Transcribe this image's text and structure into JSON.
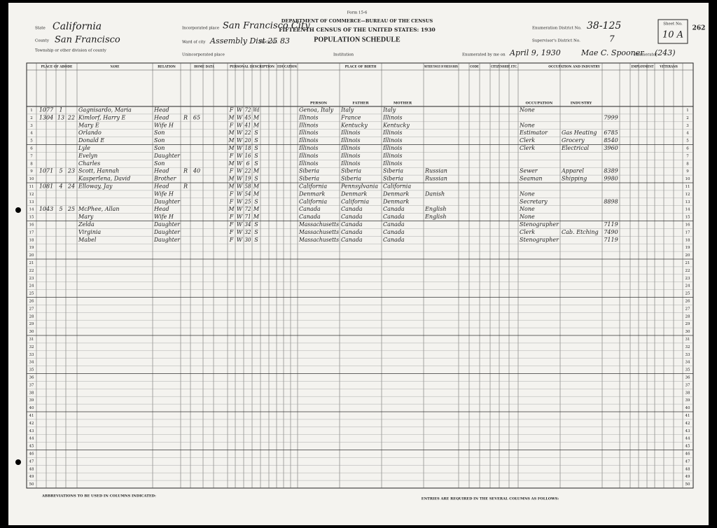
{
  "header": {
    "form": "Form 15-6",
    "department": "DEPARTMENT OF COMMERCE—BUREAU OF THE CENSUS",
    "census": "FIFTEENTH CENSUS OF THE UNITED STATES: 1930",
    "schedule": "POPULATION SCHEDULE",
    "state_label": "State",
    "state": "California",
    "county_label": "County",
    "county": "San Francisco",
    "township_label": "Township or other division of county",
    "place_label": "Incorporated place",
    "place": "San Francisco City",
    "ward_label": "Ward of city",
    "ward": "Assembly Dist 25",
    "block_label": "Block No.",
    "block": "83",
    "unincorporated_label": "Unincorporated place",
    "institution_label": "Institution",
    "district_label": "Enumeration District No.",
    "district": "38-125",
    "supervisor_label": "Supervisor's District No.",
    "supervisor": "7",
    "sheet_label": "Sheet No.",
    "sheet": "10 A",
    "stamp": "262",
    "enumerated_label": "Enumerated by me on",
    "date": "April 9, 1930",
    "enumerator": "Mae C. Spooner",
    "enumerator_label": "Enumerator",
    "ref": "(243)"
  },
  "column_groups": [
    "PLACE OF ABODE",
    "NAME",
    "RELATION",
    "HOME DATA",
    "PERSONAL DESCRIPTION",
    "EDUCATION",
    "PLACE OF BIRTH",
    "MOTHER TONGUE OF FOREIGN BORN",
    "CODE",
    "CITIZENSHIP, ETC.",
    "OCCUPATION AND INDUSTRY",
    "EMPLOYMENT",
    "VETERANS"
  ],
  "sub_columns": [
    "PERSON",
    "FATHER",
    "MOTHER",
    "OCCUPATION",
    "INDUSTRY"
  ],
  "row_numbers": [
    1,
    2,
    3,
    4,
    5,
    6,
    7,
    8,
    9,
    10,
    11,
    12,
    13,
    14,
    15,
    16,
    17,
    18,
    19,
    20,
    21,
    22,
    23,
    24,
    25,
    26,
    27,
    28,
    29,
    30,
    31,
    32,
    33,
    34,
    35,
    36,
    37,
    38,
    39,
    40,
    41,
    42,
    43,
    44,
    45,
    46,
    47,
    48,
    49,
    50
  ],
  "entries": [
    {
      "house": "1077",
      "dwelling": "1",
      "name": "Gagnisardo, Maria",
      "relation": "Head",
      "sex": "F",
      "race": "W",
      "age": "72",
      "marital": "Wd",
      "birthplace": "Genoa, Italy",
      "father": "Italy",
      "mother": "Italy",
      "occupation": "None"
    },
    {
      "house": "1304",
      "dwelling": "13",
      "family": "22",
      "name": "Kimlorf, Harry E",
      "relation": "Head",
      "home": "R",
      "value": "65",
      "sex": "M",
      "race": "W",
      "age": "45",
      "marital": "M",
      "birthplace": "Illinois",
      "father": "France",
      "mother": "Illinois",
      "code": "7999"
    },
    {
      "name": "Mary E",
      "relation": "Wife H",
      "sex": "F",
      "race": "W",
      "age": "41",
      "marital": "M",
      "birthplace": "Illinois",
      "father": "Kentucky",
      "mother": "Kentucky",
      "occupation": "None"
    },
    {
      "name": "Orlando",
      "relation": "Son",
      "sex": "M",
      "race": "W",
      "age": "22",
      "marital": "S",
      "birthplace": "Illinois",
      "father": "Illinois",
      "mother": "Illinois",
      "occupation": "Estimator",
      "industry": "Gas Heating",
      "code": "6785"
    },
    {
      "name": "Donald E",
      "relation": "Son",
      "sex": "M",
      "race": "W",
      "age": "20",
      "marital": "S",
      "birthplace": "Illinois",
      "father": "Illinois",
      "mother": "Illinois",
      "occupation": "Clerk",
      "industry": "Grocery",
      "code": "8540"
    },
    {
      "name": "Lyle",
      "relation": "Son",
      "sex": "M",
      "race": "W",
      "age": "18",
      "marital": "S",
      "birthplace": "Illinois",
      "father": "Illinois",
      "mother": "Illinois",
      "occupation": "Clerk",
      "industry": "Electrical",
      "code": "3960"
    },
    {
      "name": "Evelyn",
      "relation": "Daughter",
      "sex": "F",
      "race": "W",
      "age": "16",
      "marital": "S",
      "birthplace": "Illinois",
      "father": "Illinois",
      "mother": "Illinois"
    },
    {
      "name": "Charles",
      "relation": "Son",
      "sex": "M",
      "race": "W",
      "age": "6",
      "marital": "S",
      "birthplace": "Illinois",
      "father": "Illinois",
      "mother": "Illinois"
    },
    {
      "house": "1071",
      "dwelling": "5",
      "family": "23",
      "name": "Scott, Hannah",
      "relation": "Head",
      "home": "R",
      "value": "40",
      "sex": "F",
      "race": "W",
      "age": "22",
      "marital": "M",
      "birthplace": "Siberia",
      "father": "Siberia",
      "mother": "Siberia",
      "language": "Russian",
      "occupation": "Sewer",
      "industry": "Apparel",
      "code": "8389"
    },
    {
      "name": "Kasperlena, David",
      "relation": "Brother",
      "sex": "M",
      "race": "W",
      "age": "19",
      "marital": "S",
      "birthplace": "Siberia",
      "father": "Siberia",
      "mother": "Siberia",
      "language": "Russian",
      "occupation": "Seaman",
      "industry": "Shipping",
      "code": "9980"
    },
    {
      "house": "1081",
      "dwelling": "4",
      "family": "24",
      "name": "Elloway, Jay",
      "relation": "Head",
      "home": "R",
      "sex": "M",
      "race": "W",
      "age": "58",
      "marital": "M",
      "birthplace": "California",
      "father": "Pennsylvania",
      "mother": "California"
    },
    {
      "relation": "Wife H",
      "sex": "F",
      "race": "W",
      "age": "54",
      "marital": "M",
      "birthplace": "Denmark",
      "father": "Denmark",
      "mother": "Denmark",
      "language": "Danish",
      "occupation": "None"
    },
    {
      "relation": "Daughter",
      "sex": "F",
      "race": "W",
      "age": "25",
      "marital": "S",
      "birthplace": "California",
      "father": "California",
      "mother": "Denmark",
      "occupation": "Secretary",
      "code": "8898"
    },
    {
      "house": "1043",
      "dwelling": "5",
      "family": "25",
      "name": "McPhee, Allan",
      "relation": "Head",
      "sex": "M",
      "race": "W",
      "age": "72",
      "marital": "M",
      "birthplace": "Canada",
      "father": "Canada",
      "mother": "Canada",
      "language": "English",
      "occupation": "None"
    },
    {
      "name": "Mary",
      "relation": "Wife H",
      "sex": "F",
      "race": "W",
      "age": "71",
      "marital": "M",
      "birthplace": "Canada",
      "father": "Canada",
      "mother": "Canada",
      "language": "English",
      "occupation": "None"
    },
    {
      "name": "Zelda",
      "relation": "Daughter",
      "sex": "F",
      "race": "W",
      "age": "34",
      "marital": "S",
      "birthplace": "Massachusetts",
      "father": "Canada",
      "mother": "Canada",
      "occupation": "Stenographer",
      "code": "7119"
    },
    {
      "name": "Virginia",
      "relation": "Daughter",
      "sex": "F",
      "race": "W",
      "age": "32",
      "marital": "S",
      "birthplace": "Massachusetts",
      "father": "Canada",
      "mother": "Canada",
      "occupation": "Clerk",
      "industry": "Cab. Etching",
      "code": "7490"
    },
    {
      "name": "Mabel",
      "relation": "Daughter",
      "sex": "F",
      "race": "W",
      "age": "30",
      "marital": "S",
      "birthplace": "Massachusetts",
      "father": "Canada",
      "mother": "Canada",
      "occupation": "Stenographer",
      "code": "7119"
    }
  ],
  "footer": {
    "abbreviations": "ABBREVIATIONS TO BE USED IN COLUMNS INDICATED:",
    "entries_required": "ENTRIES ARE REQUIRED IN THE SEVERAL COLUMNS AS FOLLOWS:"
  }
}
